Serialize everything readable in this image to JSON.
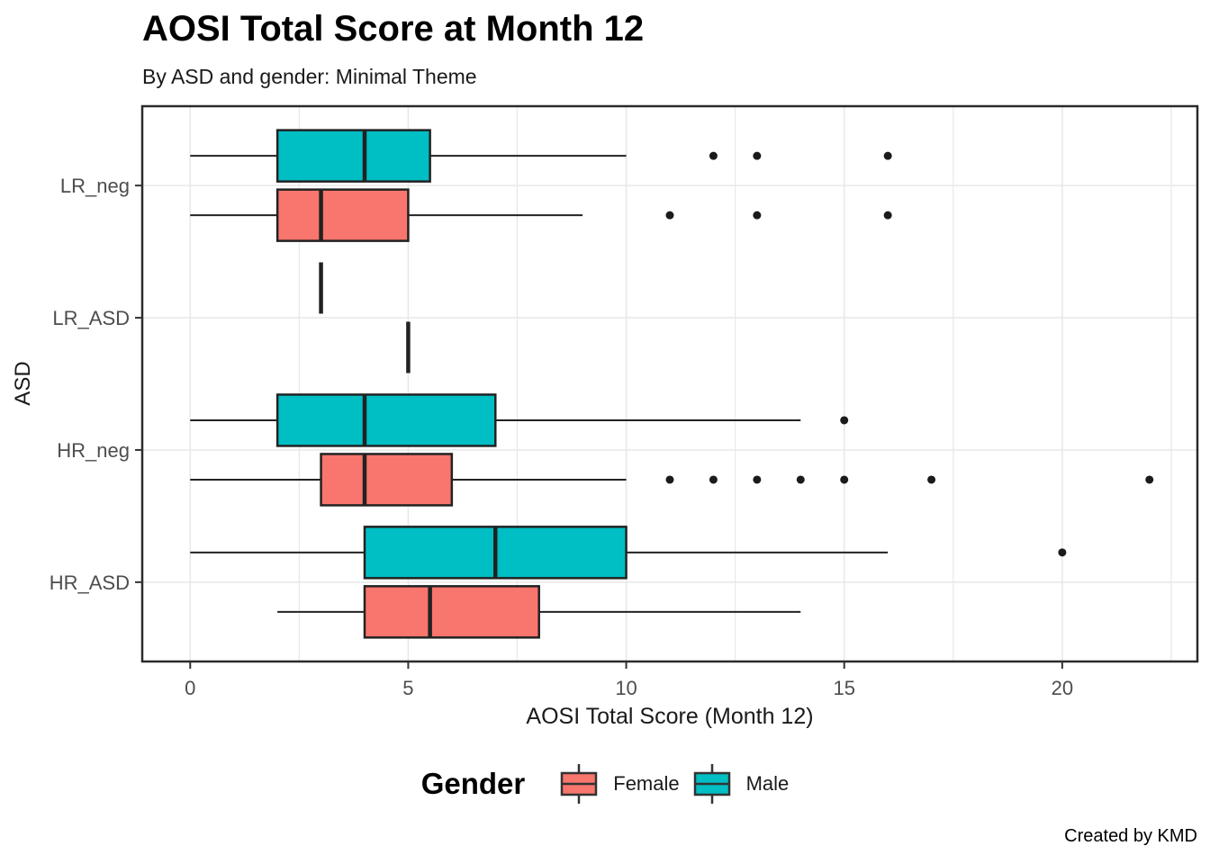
{
  "header": {
    "title": "AOSI Total Score at Month 12",
    "subtitle": "By ASD and gender: Minimal Theme"
  },
  "caption": "Created by KMD",
  "axes": {
    "x": {
      "title": "AOSI Total Score (Month 12)",
      "ticks": [
        0,
        5,
        10,
        15,
        20
      ],
      "range": [
        -1.1,
        23.1
      ],
      "gridline_step": 2.5,
      "gridline_min": 0,
      "gridline_max": 22.5
    },
    "y": {
      "title": "ASD",
      "categories_top_to_bottom": [
        "LR_neg",
        "LR_ASD",
        "HR_neg",
        "HR_ASD"
      ]
    }
  },
  "legend": {
    "title": "Gender",
    "items": [
      {
        "label": "Female",
        "color": "#F8766D"
      },
      {
        "label": "Male",
        "color": "#00BFC4"
      }
    ]
  },
  "colors": {
    "female": "#F8766D",
    "male": "#00BFC4",
    "box_border": "#222222",
    "median": "#222222",
    "whisker": "#222222",
    "outlier": "#1b1b1b",
    "gridline": "#e8e8e8",
    "panel_border": "#2b2b2b",
    "tick_mark": "#333333",
    "axis_text": "#4d4d4d"
  },
  "chart_data": {
    "type": "boxplot",
    "orientation": "horizontal",
    "title": "AOSI Total Score at Month 12",
    "subtitle": "By ASD and gender: Minimal Theme",
    "xlabel": "AOSI Total Score (Month 12)",
    "ylabel": "ASD",
    "xlim": [
      -1.1,
      23.1
    ],
    "x_ticks": [
      0,
      5,
      10,
      15,
      20
    ],
    "grid": "on",
    "legend_position": "bottom",
    "series_order_top_to_bottom_within_group": [
      "Male",
      "Female"
    ],
    "groups": [
      {
        "category": "LR_neg",
        "boxes": [
          {
            "gender": "Male",
            "min": 0,
            "q1": 2,
            "median": 4,
            "q3": 5.5,
            "max": 10,
            "outliers": [
              12,
              13,
              16
            ]
          },
          {
            "gender": "Female",
            "min": 0,
            "q1": 2,
            "median": 3,
            "q3": 5,
            "max": 9,
            "outliers": [
              11,
              13,
              16
            ]
          }
        ]
      },
      {
        "category": "LR_ASD",
        "boxes": [
          {
            "gender": "Male",
            "min": 3,
            "q1": 3,
            "median": 3,
            "q3": 3,
            "max": 3,
            "outliers": []
          },
          {
            "gender": "Female",
            "min": 5,
            "q1": 5,
            "median": 5,
            "q3": 5,
            "max": 5,
            "outliers": []
          }
        ]
      },
      {
        "category": "HR_neg",
        "boxes": [
          {
            "gender": "Male",
            "min": 0,
            "q1": 2,
            "median": 4,
            "q3": 7,
            "max": 14,
            "outliers": [
              15
            ]
          },
          {
            "gender": "Female",
            "min": 0,
            "q1": 3,
            "median": 4,
            "q3": 6,
            "max": 10,
            "outliers": [
              11,
              12,
              13,
              14,
              15,
              17,
              22
            ]
          }
        ]
      },
      {
        "category": "HR_ASD",
        "boxes": [
          {
            "gender": "Male",
            "min": 0,
            "q1": 4,
            "median": 7,
            "q3": 10,
            "max": 16,
            "outliers": [
              20
            ]
          },
          {
            "gender": "Female",
            "min": 2,
            "q1": 4,
            "median": 5.5,
            "q3": 8,
            "max": 14,
            "outliers": []
          }
        ]
      }
    ]
  }
}
